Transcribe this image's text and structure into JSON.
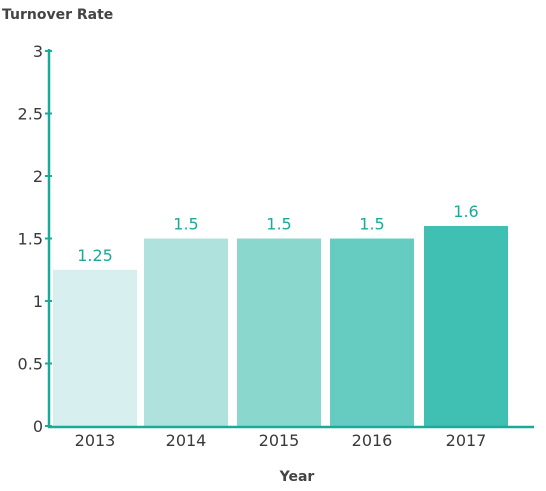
{
  "chart_data": {
    "type": "bar",
    "ylabel": "Turnover Rate",
    "xlabel": "Year",
    "categories": [
      "2013",
      "2014",
      "2015",
      "2016",
      "2017"
    ],
    "values": [
      1.25,
      1.5,
      1.5,
      1.5,
      1.6
    ],
    "data_labels": [
      "1.25",
      "1.5",
      "1.5",
      "1.5",
      "1.6"
    ],
    "ylim": [
      0,
      3
    ],
    "yticks": [
      0,
      0.5,
      1,
      1.5,
      2,
      2.5,
      3
    ],
    "ytick_labels": [
      "0",
      "0.5",
      "1",
      "1.5",
      "2",
      "2.5",
      "3"
    ],
    "grid": false,
    "legend": "none",
    "bar_colors": [
      "#d8efef",
      "#b0e2dd",
      "#8ad7ce",
      "#66ccc2",
      "#40bfb3"
    ],
    "axis_color": "#1aaa98",
    "data_label_color": "#1aaa98"
  }
}
